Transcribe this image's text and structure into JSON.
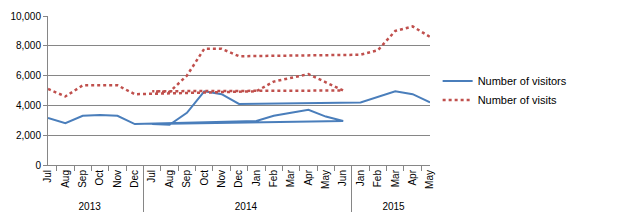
{
  "chart_data": {
    "type": "line",
    "categories": [
      [
        "2013",
        "Jul"
      ],
      [
        "2013",
        "Aug"
      ],
      [
        "2013",
        "Sep"
      ],
      [
        "2013",
        "Oct"
      ],
      [
        "2013",
        "Nov"
      ],
      [
        "2013",
        "Dec"
      ],
      [
        "2014",
        "Jan"
      ],
      [
        "2014",
        "Feb"
      ],
      [
        "2014",
        "Mar"
      ],
      [
        "2014",
        "Apr"
      ],
      [
        "2014",
        "May"
      ],
      [
        "2014",
        "Jun"
      ],
      [
        "2014",
        "Jul"
      ],
      [
        "2014",
        "Aug"
      ],
      [
        "2014",
        "Sep"
      ],
      [
        "2014",
        "Oct"
      ],
      [
        "2014",
        "Nov"
      ],
      [
        "2014",
        "Dec"
      ],
      [
        "2015",
        "Jan"
      ],
      [
        "2015",
        "Feb"
      ],
      [
        "2015",
        "Mar"
      ],
      [
        "2015",
        "Apr"
      ],
      [
        "2015",
        "May"
      ]
    ],
    "series": [
      {
        "name": "Number of visitors",
        "color": "#4a7ebb",
        "line_style": "solid",
        "values": [
          3150,
          2800,
          3300,
          3350,
          3300,
          2750,
          2950,
          3300,
          3500,
          3700,
          3250,
          2950,
          2750,
          2700,
          3500,
          4950,
          4750,
          4100,
          4200,
          4600,
          4950,
          4750,
          4200
        ]
      },
      {
        "name": "Number of visits",
        "color": "#c0504d",
        "line_style": "dot",
        "values": [
          5100,
          4600,
          5350,
          5350,
          5350,
          4750,
          4950,
          5600,
          5850,
          6100,
          5550,
          5000,
          4950,
          4900,
          6000,
          7800,
          7800,
          7300,
          7400,
          7700,
          9000,
          9300,
          8600
        ]
      }
    ],
    "ylim": [
      0,
      10000
    ],
    "yticks": [
      0,
      {
        "value": 2000,
        "label": "2,000"
      },
      {
        "value": 4000,
        "label": "4,000"
      },
      {
        "value": 6000,
        "label": "6,000"
      },
      {
        "value": 8000,
        "label": "8,000"
      },
      {
        "value": 10000,
        "label": "10,000"
      }
    ],
    "grid": true,
    "legend": "right"
  }
}
